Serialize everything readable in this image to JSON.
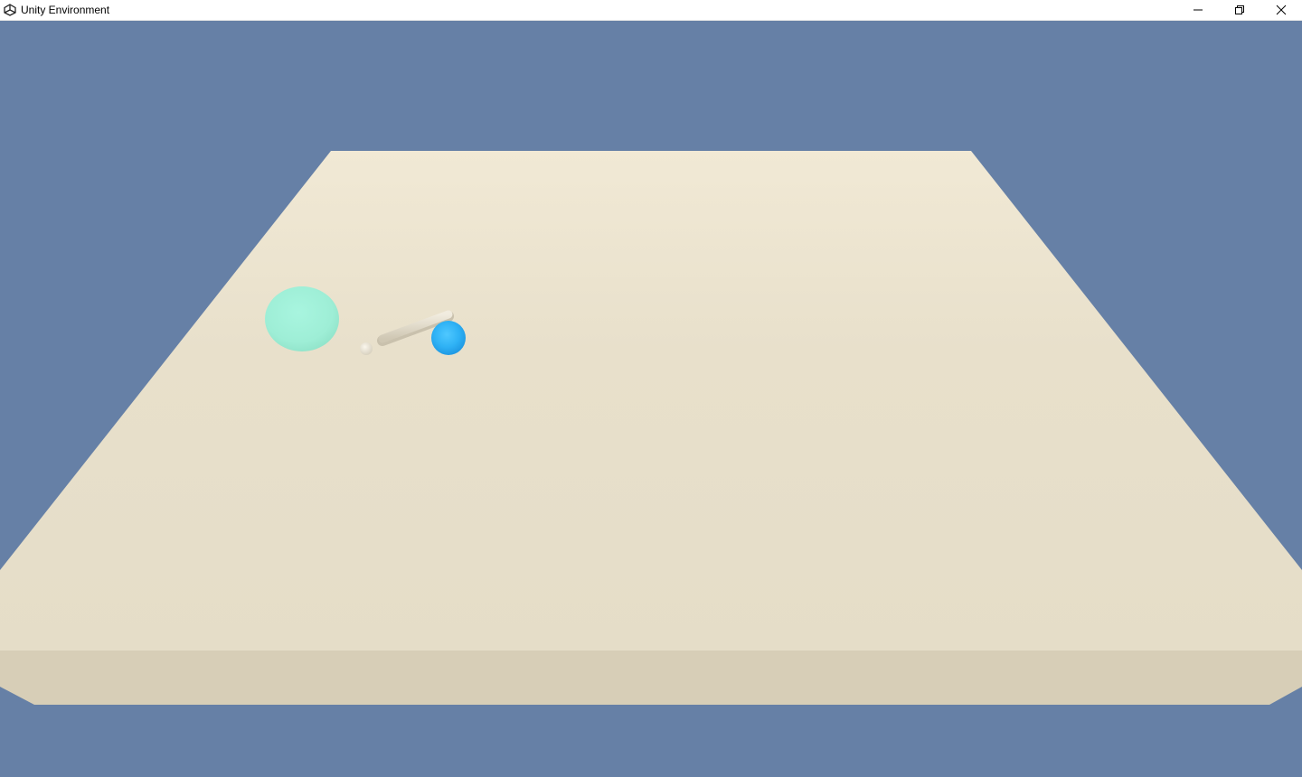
{
  "window": {
    "title": "Unity Environment",
    "controls": {
      "minimize": "minimize",
      "restore": "restore",
      "close": "close"
    }
  },
  "scene": {
    "background_color": "#6680a6",
    "floor_top_color": "#e8e0cb",
    "floor_front_color": "#d7ceb7",
    "target_color": "#9ff0d8",
    "effector_color": "#2fb2f5",
    "arm_color": "#e3dccb"
  }
}
